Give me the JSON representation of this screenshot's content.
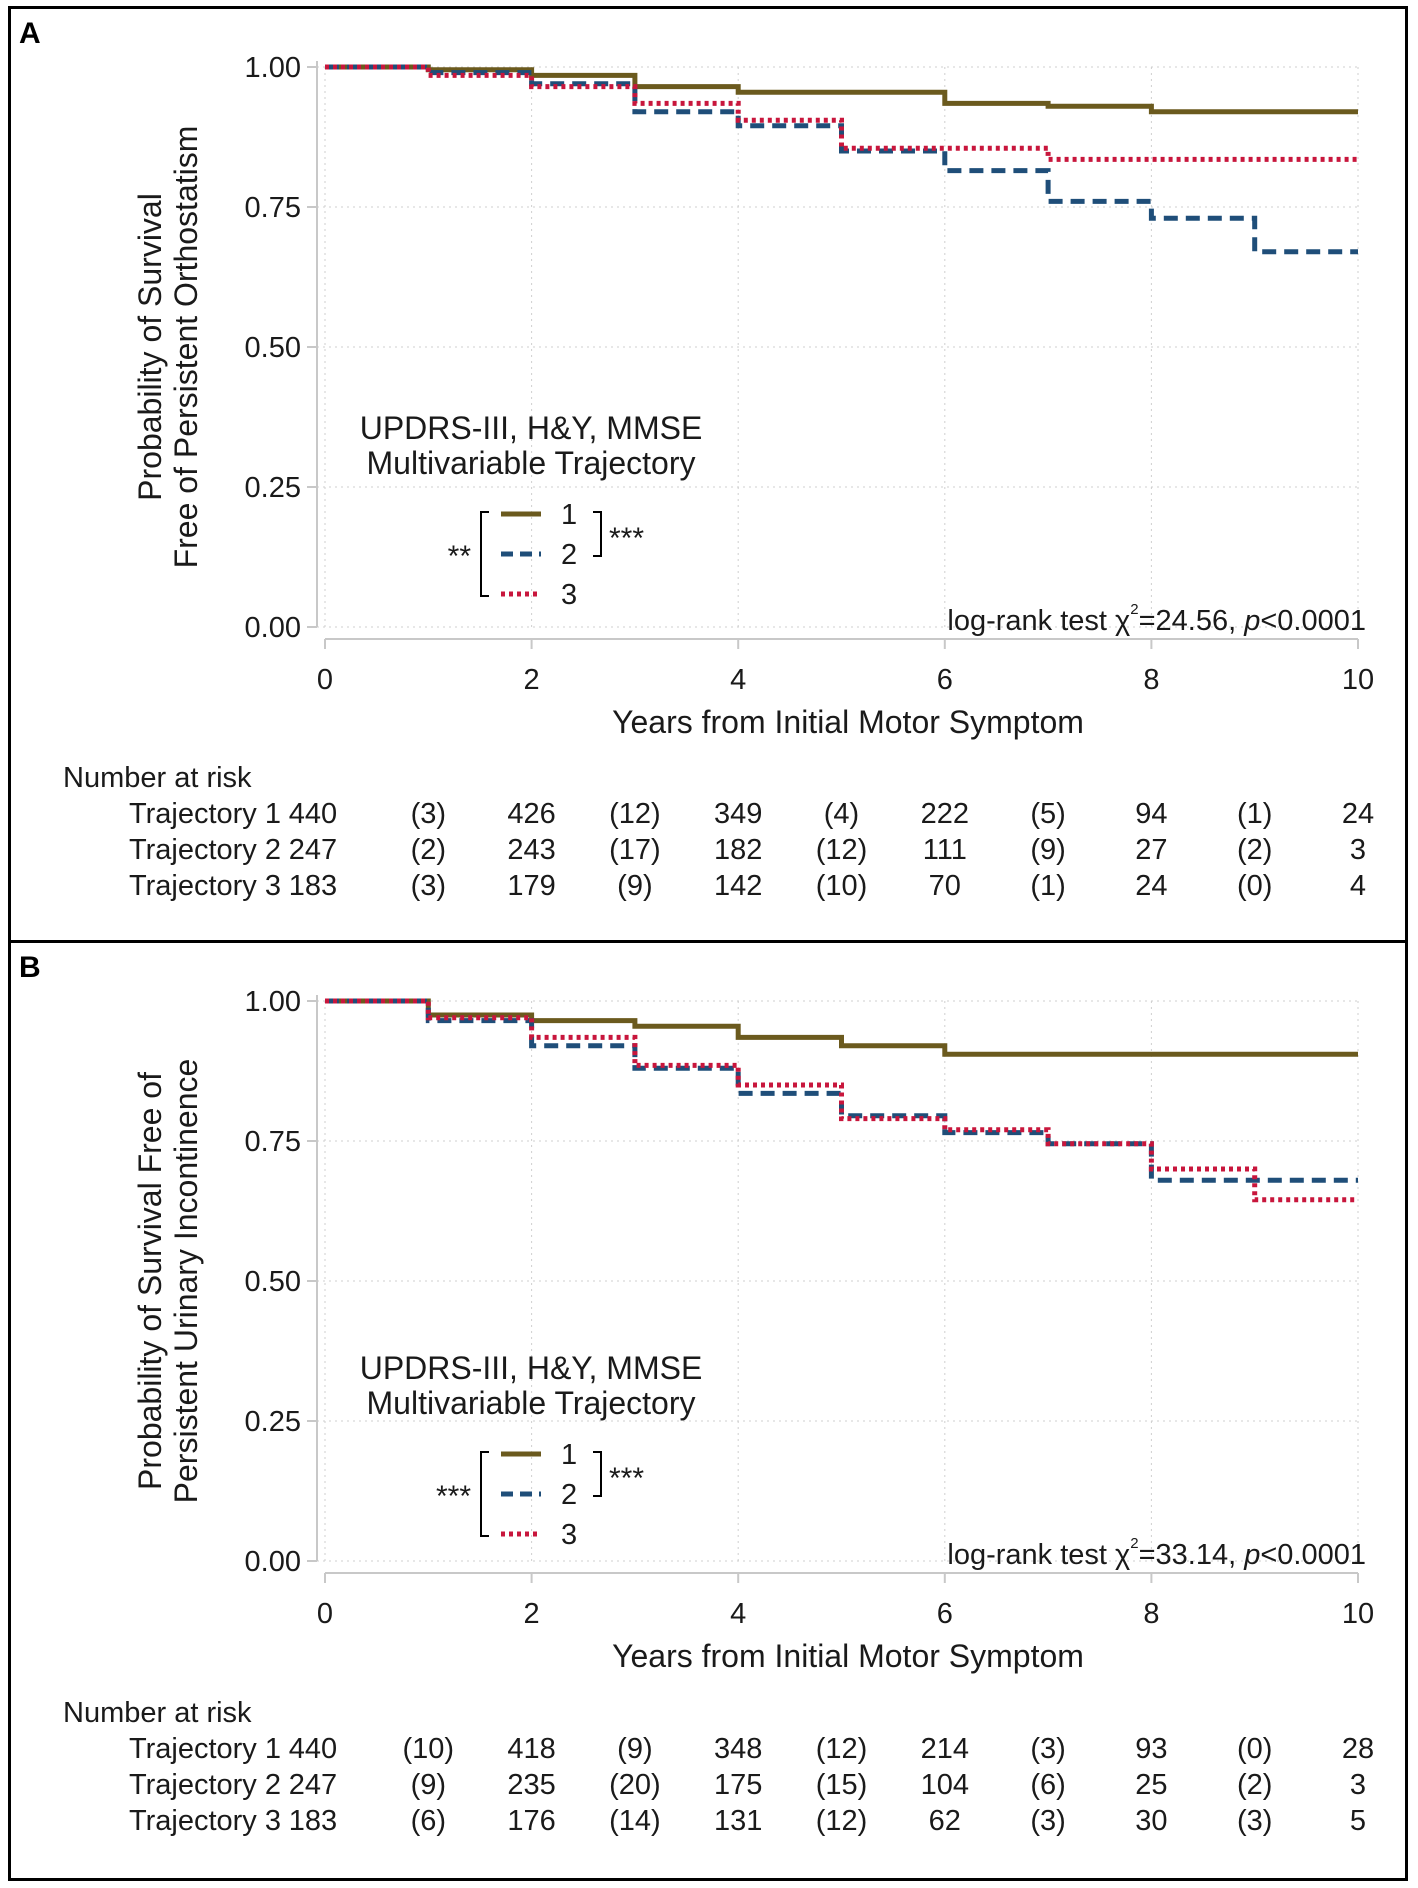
{
  "chart_data": [
    {
      "type": "line",
      "panel_label": "A",
      "step": true,
      "ylabel_lines": [
        "Probability of Survival",
        "Free of Persistent Orthostatism"
      ],
      "xlabel": "Years from Initial Motor Symptom",
      "xlim": [
        0,
        10
      ],
      "ylim": [
        0,
        1
      ],
      "xticks": [
        "0",
        "2",
        "4",
        "6",
        "8",
        "10"
      ],
      "yticks": [
        "0.00",
        "0.25",
        "0.50",
        "0.75",
        "1.00"
      ],
      "grid": true,
      "legend": {
        "title_lines": [
          "UPDRS-III, H&Y, MMSE",
          "Multivariable Trajectory"
        ],
        "entries": [
          "1",
          "2",
          "3"
        ],
        "sig_1_3": "**",
        "sig_1_2": "***",
        "placement": "center-left"
      },
      "test_text": {
        "prefix": "log-rank test χ",
        "sup": "2",
        "stat": "=24.56, ",
        "p": "p",
        "p_val": "<0.0001"
      },
      "series": [
        {
          "name": "1",
          "color": "#6b5a1e",
          "style": "solid",
          "x": [
            0,
            1,
            2,
            3,
            4,
            6,
            7,
            8,
            10
          ],
          "y": [
            1.0,
            0.995,
            0.985,
            0.965,
            0.955,
            0.935,
            0.93,
            0.92,
            0.92
          ]
        },
        {
          "name": "2",
          "color": "#1f4e79",
          "style": "dashed",
          "x": [
            0,
            1,
            2,
            3,
            4,
            5,
            6,
            7,
            8,
            9,
            10
          ],
          "y": [
            1.0,
            0.99,
            0.97,
            0.92,
            0.895,
            0.85,
            0.815,
            0.76,
            0.73,
            0.67,
            0.67
          ]
        },
        {
          "name": "3",
          "color": "#c8163c",
          "style": "dotted",
          "x": [
            0,
            1,
            2,
            3,
            4,
            5,
            7,
            10
          ],
          "y": [
            1.0,
            0.985,
            0.965,
            0.935,
            0.905,
            0.855,
            0.835,
            0.835
          ]
        }
      ],
      "risk_table": {
        "title": "Number at risk",
        "rows": [
          {
            "label": "Trajectory 1",
            "cells": [
              "440",
              "(3)",
              "426",
              "(12)",
              "349",
              "(4)",
              "222",
              "(5)",
              "94",
              "(1)",
              "24"
            ]
          },
          {
            "label": "Trajectory 2",
            "cells": [
              "247",
              "(2)",
              "243",
              "(17)",
              "182",
              "(12)",
              "111",
              "(9)",
              "27",
              "(2)",
              "3"
            ]
          },
          {
            "label": "Trajectory 3",
            "cells": [
              "183",
              "(3)",
              "179",
              "(9)",
              "142",
              "(10)",
              "70",
              "(1)",
              "24",
              "(0)",
              "4"
            ]
          }
        ]
      }
    },
    {
      "type": "line",
      "panel_label": "B",
      "step": true,
      "ylabel_lines": [
        "Probability of Survival Free of",
        "Persistent Urinary Incontinence"
      ],
      "xlabel": "Years from Initial Motor Symptom",
      "xlim": [
        0,
        10
      ],
      "ylim": [
        0,
        1
      ],
      "xticks": [
        "0",
        "2",
        "4",
        "6",
        "8",
        "10"
      ],
      "yticks": [
        "0.00",
        "0.25",
        "0.50",
        "0.75",
        "1.00"
      ],
      "grid": true,
      "legend": {
        "title_lines": [
          "UPDRS-III, H&Y, MMSE",
          "Multivariable Trajectory"
        ],
        "entries": [
          "1",
          "2",
          "3"
        ],
        "sig_1_3": "***",
        "sig_1_2": "***",
        "placement": "center-left"
      },
      "test_text": {
        "prefix": "log-rank test χ",
        "sup": "2",
        "stat": "=33.14, ",
        "p": "p",
        "p_val": "<0.0001"
      },
      "series": [
        {
          "name": "1",
          "color": "#6b5a1e",
          "style": "solid",
          "x": [
            0,
            1,
            2,
            3,
            4,
            5,
            6,
            10
          ],
          "y": [
            1.0,
            0.975,
            0.965,
            0.955,
            0.935,
            0.92,
            0.905,
            0.905
          ]
        },
        {
          "name": "2",
          "color": "#1f4e79",
          "style": "dashed",
          "x": [
            0,
            1,
            2,
            3,
            4,
            5,
            6,
            7,
            8,
            9,
            10
          ],
          "y": [
            1.0,
            0.965,
            0.92,
            0.88,
            0.835,
            0.795,
            0.765,
            0.745,
            0.68,
            0.68,
            0.68
          ]
        },
        {
          "name": "3",
          "color": "#c8163c",
          "style": "dotted",
          "x": [
            0,
            1,
            2,
            3,
            4,
            5,
            6,
            7,
            8,
            9,
            10
          ],
          "y": [
            1.0,
            0.97,
            0.935,
            0.885,
            0.85,
            0.79,
            0.77,
            0.745,
            0.7,
            0.645,
            0.645
          ]
        }
      ],
      "risk_table": {
        "title": "Number at risk",
        "rows": [
          {
            "label": "Trajectory 1",
            "cells": [
              "440",
              "(10)",
              "418",
              "(9)",
              "348",
              "(12)",
              "214",
              "(3)",
              "93",
              "(0)",
              "28"
            ]
          },
          {
            "label": "Trajectory 2",
            "cells": [
              "247",
              "(9)",
              "235",
              "(20)",
              "175",
              "(15)",
              "104",
              "(6)",
              "25",
              "(2)",
              "3"
            ]
          },
          {
            "label": "Trajectory 3",
            "cells": [
              "183",
              "(6)",
              "176",
              "(14)",
              "131",
              "(12)",
              "62",
              "(3)",
              "30",
              "(3)",
              "5"
            ]
          }
        ]
      }
    }
  ]
}
